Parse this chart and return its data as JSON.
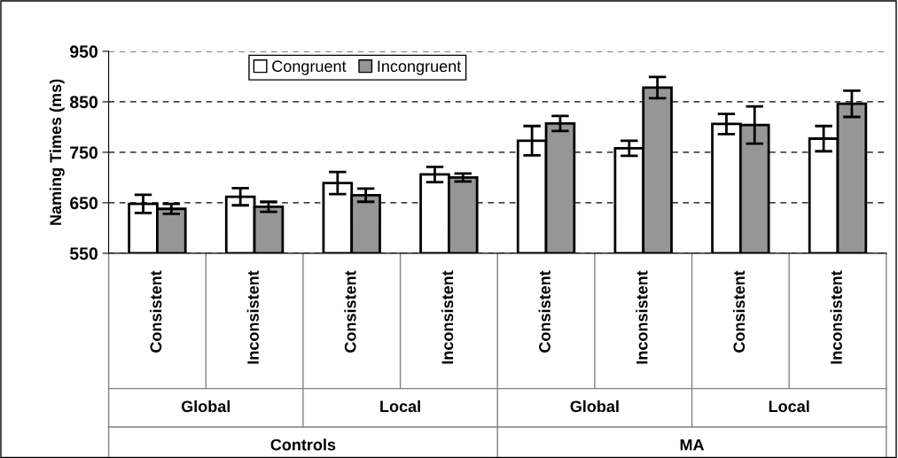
{
  "chart_data": {
    "type": "bar",
    "ylabel": "Naming Times (ms)",
    "categories": [
      "Consistent",
      "Inconsistent",
      "Consistent",
      "Inconsistent",
      "Consistent",
      "Inconsistent",
      "Consistent",
      "Inconsistent"
    ],
    "series": [
      {
        "name": "Congruent",
        "color": "#ffffff",
        "values": [
          648,
          662,
          689,
          706,
          773,
          758,
          806,
          777
        ],
        "errors": [
          18,
          17,
          22,
          15,
          29,
          15,
          20,
          25
        ]
      },
      {
        "name": "Incongruent",
        "color": "#969696",
        "values": [
          638,
          642,
          665,
          700,
          807,
          878,
          804,
          846
        ],
        "errors": [
          10,
          10,
          13,
          8,
          15,
          21,
          37,
          26
        ]
      }
    ],
    "ylim": [
      550,
      950
    ],
    "yticks": [
      550,
      650,
      750,
      850,
      950
    ],
    "grid": "y",
    "legend": "top",
    "annotations": [
      "Global",
      "Local",
      "Global",
      "Local",
      "Controls",
      "MA"
    ]
  }
}
